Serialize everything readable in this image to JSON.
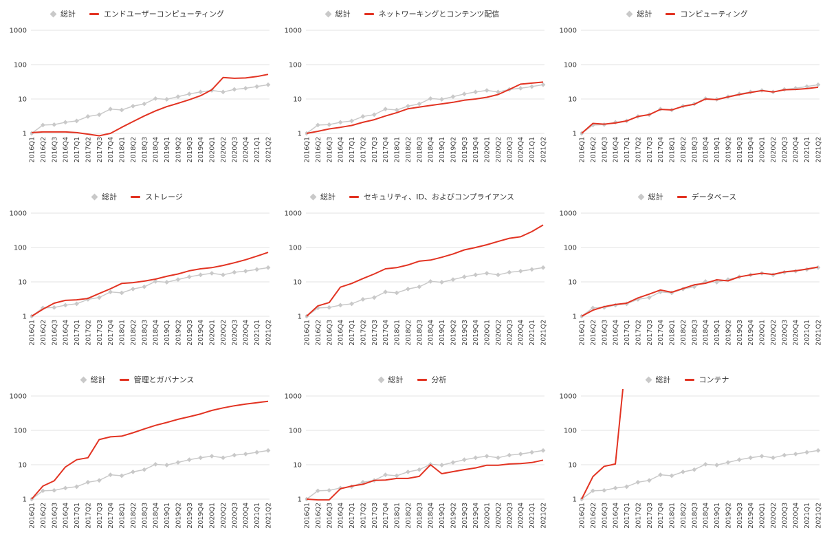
{
  "colors": {
    "total_series": "#c9c9c9",
    "category_series": "#e23322",
    "gridline": "#e3e3e3",
    "y_axis_text": "#333333",
    "x_axis_text": "#444444",
    "background": "#ffffff"
  },
  "chart_data": {
    "type": "line",
    "layout": "3x3-small-multiples",
    "y_scale": "log",
    "ylim": [
      1,
      1000
    ],
    "y_ticks": [
      1,
      10,
      100,
      1000
    ],
    "grid": true,
    "legend_position": "top-center",
    "total_series_name": "総計",
    "x": [
      "2016Q1",
      "2016Q2",
      "2016Q3",
      "2016Q4",
      "2017Q1",
      "2017Q2",
      "2017Q3",
      "2017Q4",
      "2018Q1",
      "2018Q2",
      "2018Q3",
      "2018Q4",
      "2019Q1",
      "2019Q2",
      "2019Q3",
      "2019Q4",
      "2020Q1",
      "2020Q2",
      "2020Q3",
      "2020Q4",
      "2021Q1",
      "2021Q2"
    ],
    "total_values": [
      1,
      1.75,
      1.8,
      2.1,
      2.3,
      3.1,
      3.5,
      5.1,
      4.8,
      6.2,
      7.2,
      10.3,
      9.8,
      11.7,
      14,
      16,
      17.8,
      16,
      19,
      20.5,
      23,
      26
    ],
    "charts": [
      {
        "title": "エンドユーザーコンピューティング",
        "values": [
          1.05,
          1.1,
          1.1,
          1.1,
          1.05,
          0.95,
          0.85,
          1.0,
          1.5,
          2.2,
          3.2,
          4.5,
          6,
          7.5,
          9.5,
          12.5,
          18.5,
          42,
          40,
          41,
          45,
          52
        ]
      },
      {
        "title": "ネットワーキングとコンテンツ配信",
        "values": [
          1,
          1.15,
          1.35,
          1.5,
          1.7,
          2.1,
          2.5,
          3.2,
          4.0,
          5.2,
          5.8,
          6.5,
          7.2,
          8,
          9.2,
          10,
          11.2,
          13.5,
          19,
          27,
          29,
          31
        ]
      },
      {
        "title": "コンピューティング",
        "values": [
          1,
          1.95,
          1.85,
          2.0,
          2.3,
          3.1,
          3.5,
          5.0,
          4.8,
          6.1,
          7.0,
          10,
          9.6,
          11.5,
          13.5,
          15.5,
          17.5,
          16,
          18.5,
          19,
          20,
          22
        ]
      },
      {
        "title": "ストレージ",
        "values": [
          1,
          1.6,
          2.4,
          2.9,
          3.0,
          3.3,
          4.6,
          6.3,
          9,
          9.5,
          10.5,
          12,
          14.5,
          17,
          21,
          24,
          26,
          30,
          36,
          44,
          56,
          72
        ]
      },
      {
        "title": "セキュリティ、ID、およびコンプライアンス",
        "values": [
          1,
          2,
          2.5,
          7,
          9,
          12.5,
          17,
          24,
          26,
          31,
          40,
          43,
          52,
          65,
          85,
          100,
          120,
          150,
          185,
          205,
          290,
          450
        ]
      },
      {
        "title": "データベース",
        "values": [
          1,
          1.5,
          1.9,
          2.2,
          2.4,
          3.4,
          4.4,
          5.8,
          5.0,
          6.4,
          8.2,
          9.1,
          11.5,
          10.7,
          14,
          16,
          17.8,
          16.5,
          19.5,
          21,
          23.5,
          27
        ]
      },
      {
        "title": "管理とガバナンス",
        "values": [
          1,
          2.4,
          3.4,
          8.6,
          14,
          16,
          54,
          65,
          68,
          85,
          110,
          140,
          170,
          210,
          250,
          300,
          380,
          450,
          520,
          580,
          640,
          700
        ]
      },
      {
        "title": "分析",
        "values": [
          1,
          0.95,
          0.95,
          2.0,
          2.4,
          2.7,
          3.5,
          3.6,
          4.0,
          4.0,
          4.6,
          10,
          5.5,
          6.3,
          7.2,
          8.1,
          9.7,
          9.7,
          10.5,
          10.8,
          11.6,
          13.6
        ]
      },
      {
        "title": "コンテナ",
        "values": [
          1,
          4.5,
          9,
          10.5,
          20000,
          null,
          null,
          null,
          null,
          null,
          null,
          null,
          null,
          null,
          null,
          null,
          null,
          null,
          null,
          null,
          null,
          null
        ]
      }
    ]
  }
}
